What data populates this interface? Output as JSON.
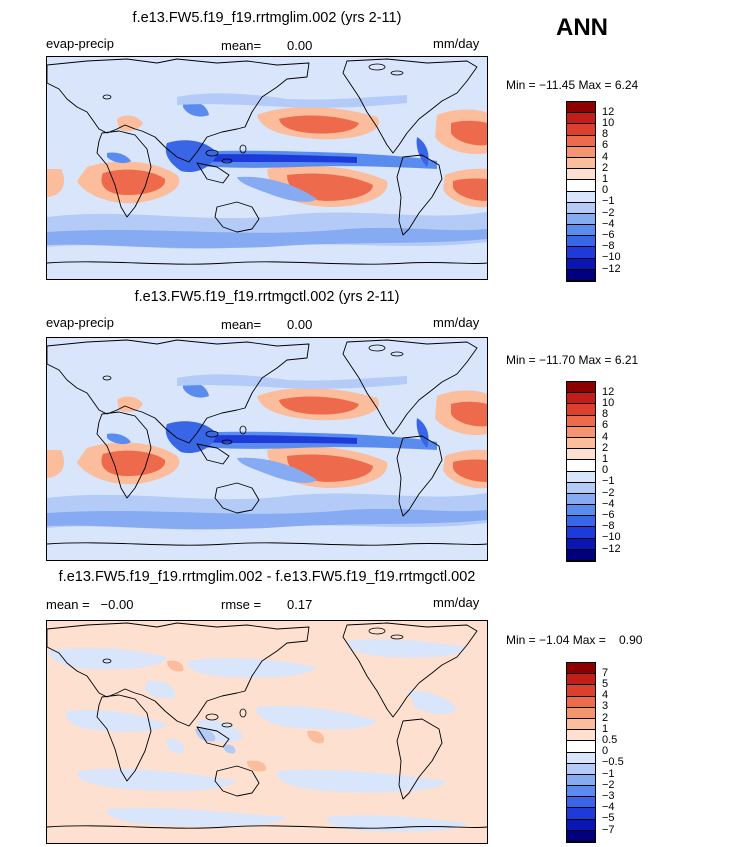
{
  "season": "ANN",
  "colors": {
    "abs": [
      "#00007f",
      "#0a16b4",
      "#1d3bd9",
      "#3866e6",
      "#5a8cef",
      "#86abf3",
      "#b3cbf6",
      "#d8e5fb",
      "#ffffff",
      "#fde0cf",
      "#fbbd9c",
      "#f59470",
      "#ee6a4c",
      "#dd3f2d",
      "#c21d16",
      "#8c0000"
    ],
    "diff": [
      "#00007f",
      "#0a16b4",
      "#1d3bd9",
      "#3866e6",
      "#5a8cef",
      "#86abf3",
      "#b3cbf6",
      "#d8e5fb",
      "#ffffff",
      "#fde0cf",
      "#fbbd9c",
      "#f59470",
      "#ee6a4c",
      "#dd3f2d",
      "#c21d16",
      "#8c0000"
    ]
  },
  "panels": [
    {
      "title": "f.e13.FW5.f19_f19.rrtmglim.002 (yrs 2-11)",
      "left": "evap-precip",
      "stat1_label": "mean=",
      "stat1_value": "0.00",
      "units": "mm/day",
      "min_max": "Min = −11.45 Max =    6.24",
      "colorbar_labels": [
        "12",
        "10",
        "8",
        "6",
        "4",
        "2",
        "1",
        "0",
        "−1",
        "−2",
        "−4",
        "−6",
        "−8",
        "−10",
        "−12"
      ]
    },
    {
      "title": "f.e13.FW5.f19_f19.rrtmgctl.002 (yrs 2-11)",
      "left": "evap-precip",
      "stat1_label": "mean=",
      "stat1_value": "0.00",
      "units": "mm/day",
      "min_max": "Min = −11.70 Max =    6.21",
      "colorbar_labels": [
        "12",
        "10",
        "8",
        "6",
        "4",
        "2",
        "1",
        "0",
        "−1",
        "−2",
        "−4",
        "−6",
        "−8",
        "−10",
        "−12"
      ]
    },
    {
      "title": "f.e13.FW5.f19_f19.rrtmglim.002 - f.e13.FW5.f19_f19.rrtmgctl.002",
      "left": "mean =   −0.00",
      "stat1_label": "rmse =",
      "stat1_value": "0.17",
      "units": "mm/day",
      "min_max": "Min = −1.04 Max =    0.90",
      "colorbar_labels": [
        "7",
        "5",
        "4",
        "3",
        "2",
        "1",
        "0.5",
        "0",
        "−0.5",
        "−1",
        "−2",
        "−3",
        "−4",
        "−5",
        "−7"
      ]
    }
  ]
}
